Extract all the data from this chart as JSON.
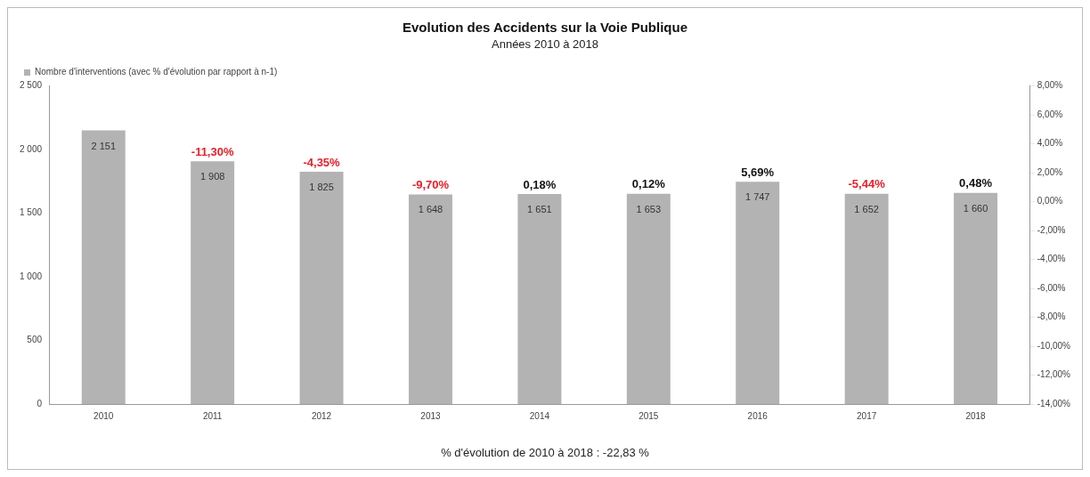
{
  "chart_data": {
    "type": "bar",
    "title": "Evolution des Accidents sur la Voie Publique",
    "subtitle": "Années 2010 à 2018",
    "categories": [
      "2010",
      "2011",
      "2012",
      "2013",
      "2014",
      "2015",
      "2016",
      "2017",
      "2018"
    ],
    "series": [
      {
        "name": "Nombre d'interventions (avec % d'évolution par rapport à n-1)",
        "color": "#b3b3b3",
        "values": [
          2151,
          1908,
          1825,
          1648,
          1651,
          1653,
          1747,
          1652,
          1660
        ],
        "value_labels": [
          "2 151",
          "1 908",
          "1 825",
          "1 648",
          "1 651",
          "1 653",
          "1 747",
          "1 652",
          "1 660"
        ]
      }
    ],
    "ylim": [
      0,
      2500
    ],
    "yticks": [
      0,
      500,
      {
        "value": 1000,
        "label": "1 000"
      },
      {
        "value": 1500,
        "label": "1 500"
      },
      {
        "value": 2000,
        "label": "2 000"
      },
      {
        "value": 2500,
        "label": "2 500"
      }
    ],
    "y2lim": [
      -14,
      8
    ],
    "y2ticks": [
      {
        "value": -14,
        "label": "-14,00%"
      },
      {
        "value": -12,
        "label": "-12,00%"
      },
      {
        "value": -10,
        "label": "-10,00%"
      },
      {
        "value": -8,
        "label": "-8,00%"
      },
      {
        "value": -6,
        "label": "-6,00%"
      },
      {
        "value": -4,
        "label": "-4,00%"
      },
      {
        "value": -2,
        "label": "-2,00%"
      },
      {
        "value": 0,
        "label": "0,00%"
      },
      {
        "value": 2,
        "label": "2,00%"
      },
      {
        "value": 4,
        "label": "4,00%"
      },
      {
        "value": 6,
        "label": "6,00%"
      },
      {
        "value": 8,
        "label": "8,00%"
      }
    ],
    "annotations": [
      {
        "text": "-11,30%",
        "x": "2011",
        "y": 1908
      },
      {
        "text": "-4,35%",
        "x": "2012",
        "y": 1825
      },
      {
        "text": "-9,70%",
        "x": "2013",
        "y": 1648
      },
      {
        "text": "0,18%",
        "x": "2014",
        "y": 1651
      },
      {
        "text": "0,12%",
        "x": "2015",
        "y": 1653
      },
      {
        "text": "5,69%",
        "x": "2016",
        "y": 1747
      },
      {
        "text": "-5,44%",
        "x": "2017",
        "y": 1652
      },
      {
        "text": "0,48%",
        "x": "2018",
        "y": 1660
      },
      "% d'évolution de 2010 à 2018 : -22,83 %"
    ],
    "legend": "top left",
    "grid": false
  }
}
